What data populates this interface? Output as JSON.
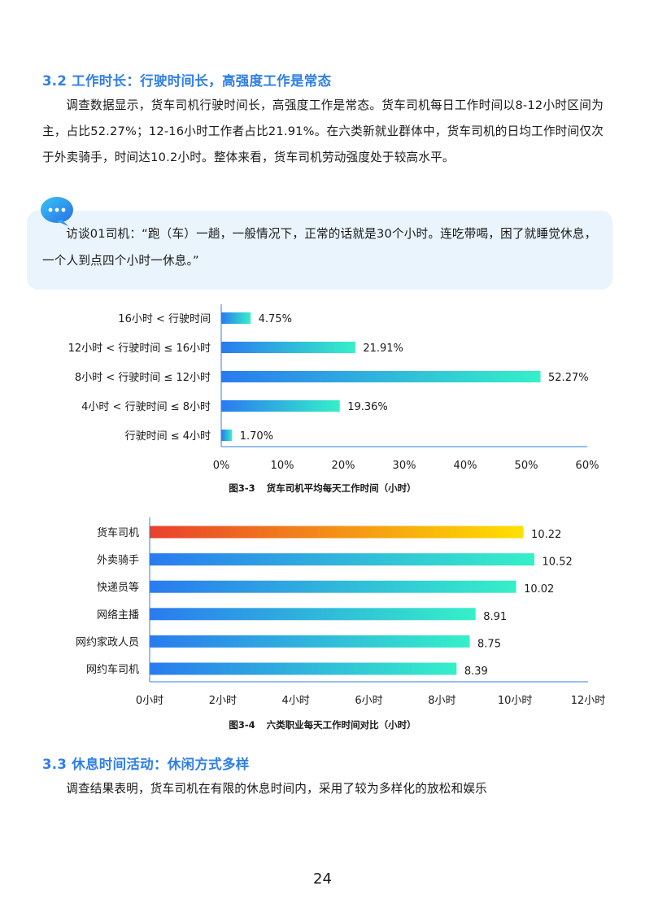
{
  "section_32": {
    "heading": "3.2 工作时长：行驶时间长，高强度工作是常态",
    "body": "调查数据显示，货车司机行驶时间长，高强度工作是常态。货车司机每日工作时间以8-12小时区间为主，占比52.27%；12-16小时工作者占比21.91%。在六类新就业群体中，货车司机的日均工作时间仅次于外卖骑手，时间达10.2小时。整体来看，货车司机劳动强度处于较高水平。"
  },
  "quote": {
    "text": "访谈01司机：“跑（车）一趟，一般情况下，正常的话就是30个小时。连吃带喝，困了就睡觉休息，一个人到点四个小时一休息。”"
  },
  "colors": {
    "heading_blue": "#2f7fe8",
    "quote_bg": "#e9f4fd",
    "bar_blue": "#2a7bef",
    "bar_teal": "#35f0c8",
    "bar_red": "#e8412d",
    "bar_yellow": "#ffe000",
    "axis": "#2f7fe8"
  },
  "chart_data": [
    {
      "type": "bar",
      "orientation": "horizontal",
      "categories": [
        "16小时 < 行驶时间",
        "12小时 < 行驶时间 ≤ 16小时",
        "8小时 < 行驶时间 ≤ 12小时",
        "4小时 < 行驶时间 ≤ 8小时",
        "行驶时间 ≤ 4小时"
      ],
      "values": [
        4.75,
        21.91,
        52.27,
        19.36,
        1.7
      ],
      "value_labels": [
        "4.75%",
        "21.91%",
        "52.27%",
        "19.36%",
        "1.70%"
      ],
      "xlim": [
        0,
        60
      ],
      "xticks": [
        "0%",
        "10%",
        "20%",
        "30%",
        "40%",
        "50%",
        "60%"
      ],
      "figure_no": "图3-3",
      "caption": "货车司机平均每天工作时间（小时）",
      "grid": false
    },
    {
      "type": "bar",
      "orientation": "horizontal",
      "categories": [
        "货车司机",
        "外卖骑手",
        "快递员等",
        "网络主播",
        "网约家政人员",
        "网约车司机"
      ],
      "values": [
        10.22,
        10.52,
        10.02,
        8.91,
        8.75,
        8.39
      ],
      "value_labels": [
        "10.22",
        "10.52",
        "10.02",
        "8.91",
        "8.75",
        "8.39"
      ],
      "highlight_index": 0,
      "xlim": [
        0,
        12
      ],
      "xticks": [
        "0小时",
        "2小时",
        "4小时",
        "6小时",
        "8小时",
        "10小时",
        "12小时"
      ],
      "figure_no": "图3-4",
      "caption": "六类职业每天工作时间对比（小时）",
      "grid": false
    }
  ],
  "section_33": {
    "heading": "3.3 休息时间活动：休闲方式多样",
    "body": "调查结果表明，货车司机在有限的休息时间内，采用了较为多样化的放松和娱乐"
  },
  "page_number": "24"
}
